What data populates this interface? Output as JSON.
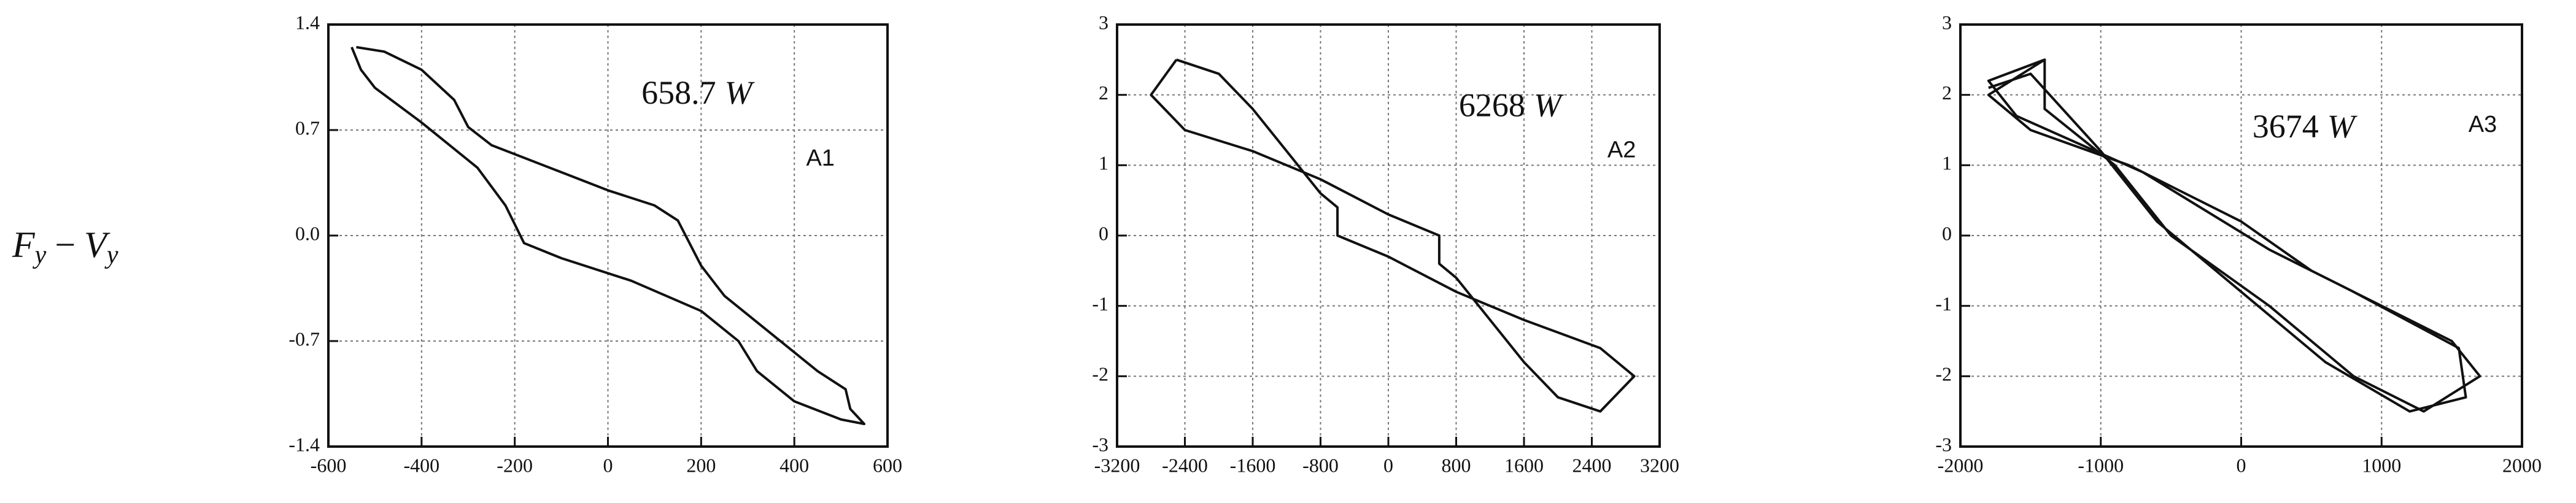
{
  "row_label": [
    "F",
    "y",
    "−",
    "V",
    "y"
  ],
  "chart_data": [
    {
      "type": "line",
      "power": "658.7",
      "power_unit": "W",
      "label": "A1",
      "xlim": [
        -600,
        600
      ],
      "xticks": [
        -600,
        -400,
        -200,
        0,
        200,
        400,
        600
      ],
      "ylim": [
        -1.4,
        1.4
      ],
      "yticks": [
        -1.4,
        -0.7,
        {
          "value": 0,
          "label": "0.0"
        },
        0.7,
        1.4
      ],
      "grid": true,
      "color": "#111111",
      "x": [
        -540,
        -480,
        -400,
        -330,
        -300,
        -250,
        -100,
        0,
        100,
        150,
        200,
        250,
        350,
        450,
        510,
        520,
        550,
        500,
        400,
        320,
        280,
        200,
        50,
        -100,
        -180,
        -220,
        -280,
        -400,
        -500,
        -530,
        -550
      ],
      "values": [
        1.25,
        1.22,
        1.1,
        0.9,
        0.72,
        0.6,
        0.42,
        0.3,
        0.2,
        0.1,
        -0.2,
        -0.4,
        -0.65,
        -0.9,
        -1.02,
        -1.15,
        -1.25,
        -1.22,
        -1.1,
        -0.9,
        -0.7,
        -0.5,
        -0.3,
        -0.15,
        -0.05,
        0.2,
        0.45,
        0.75,
        0.98,
        1.1,
        1.25
      ]
    },
    {
      "type": "line",
      "power": "6268",
      "power_unit": "W",
      "label": "A2",
      "xlim": [
        -3200,
        3200
      ],
      "xticks": [
        -3200,
        -2400,
        -1600,
        -800,
        0,
        800,
        1600,
        2400,
        3200
      ],
      "ylim": [
        -3,
        3
      ],
      "yticks": [
        -3,
        -2,
        -1,
        0,
        1,
        2,
        3
      ],
      "grid": true,
      "color": "#111111",
      "x": [
        -2500,
        -2800,
        -2400,
        -1600,
        -800,
        0,
        600,
        600,
        800,
        1200,
        1600,
        2000,
        2500,
        2900,
        2500,
        1600,
        800,
        0,
        -600,
        -600,
        -800,
        -1200,
        -1600,
        -2000,
        -2500
      ],
      "values": [
        2.5,
        2.0,
        1.5,
        1.2,
        0.8,
        0.3,
        0,
        -0.4,
        -0.6,
        -1.2,
        -1.8,
        -2.3,
        -2.5,
        -2.0,
        -1.6,
        -1.2,
        -0.8,
        -0.3,
        0,
        0.4,
        0.6,
        1.2,
        1.8,
        2.3,
        2.5
      ]
    },
    {
      "type": "line",
      "power": "3674",
      "power_unit": "W",
      "label": "A3",
      "xlim": [
        -2000,
        2000
      ],
      "xticks": [
        -2000,
        -1000,
        0,
        1000,
        2000
      ],
      "ylim": [
        -3,
        3
      ],
      "yticks": [
        -3,
        -2,
        -1,
        0,
        1,
        2,
        3
      ],
      "grid": true,
      "color": "#111111",
      "x": [
        -1400,
        -1800,
        -1500,
        -800,
        0,
        500,
        1000,
        1500,
        1700,
        1300,
        800,
        200,
        -500,
        -900,
        -1400,
        -1400,
        -1800,
        -1600,
        -700,
        200,
        800,
        1550,
        1600,
        1200,
        600,
        0,
        -600,
        -1000,
        -1500,
        -1800
      ],
      "values": [
        2.5,
        2.0,
        1.5,
        1.0,
        0.2,
        -0.5,
        -1.0,
        -1.5,
        -2.0,
        -2.5,
        -2.0,
        -1.0,
        0,
        1.0,
        1.8,
        2.5,
        2.2,
        1.7,
        0.9,
        -0.2,
        -0.8,
        -1.6,
        -2.3,
        -2.5,
        -1.8,
        -0.8,
        0.2,
        1.2,
        2.3,
        2.1
      ]
    }
  ]
}
